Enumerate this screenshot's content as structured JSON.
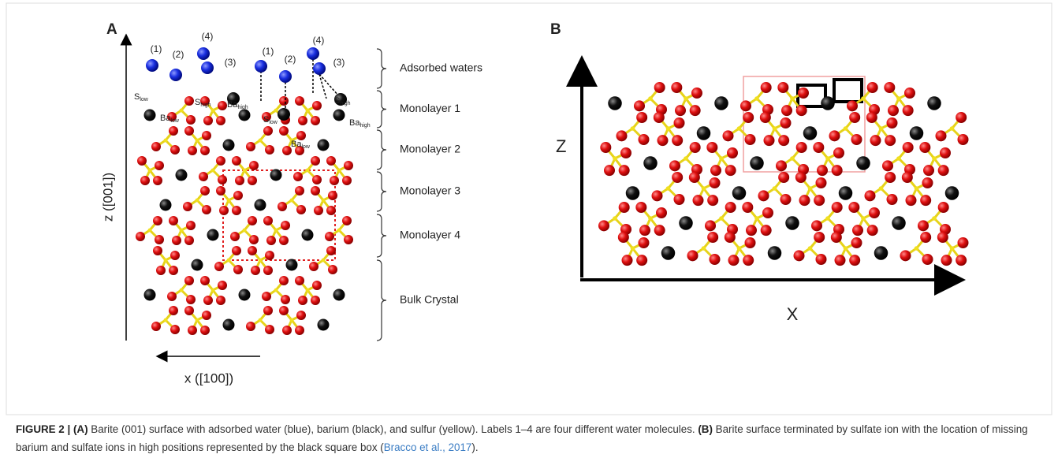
{
  "panel_a": {
    "label": "A",
    "water_labels": [
      "(1)",
      "(2)",
      "(4)",
      "(3)",
      "(1)",
      "(2)",
      "(4)",
      "(3)"
    ],
    "atom_labels": [
      {
        "main": "S",
        "sub": "low"
      },
      {
        "main": "Ba",
        "sub": "low"
      },
      {
        "main": "S",
        "sub": "high"
      },
      {
        "main": "Ba",
        "sub": "high"
      },
      {
        "main": "S",
        "sub": "low"
      },
      {
        "main": "Ba",
        "sub": "low"
      },
      {
        "main": "S",
        "sub": "high"
      },
      {
        "main": "Ba",
        "sub": "high"
      }
    ],
    "layers": [
      "Adsorbed waters",
      "Monolayer 1",
      "Monolayer 2",
      "Monolayer 3",
      "Monolayer 4",
      "Bulk Crystal"
    ],
    "z_axis": "z ([001])",
    "x_axis": "x ([100])"
  },
  "panel_b": {
    "label": "B",
    "z_axis": "Z",
    "x_axis": "X"
  },
  "caption": {
    "figure": "FIGURE 2 | ",
    "a": "(A)",
    "text_a": " Barite (001) surface with adsorbed water (blue), barium (black), and sulfur (yellow). Labels 1–4 are four different water molecules. ",
    "b": "(B)",
    "text_b": " Barite surface terminated by sulfate ion with the location of missing barium and sulfate ions in high positions represented by the black square box (",
    "cite": "Bracco et al., 2017",
    "end": ")."
  }
}
